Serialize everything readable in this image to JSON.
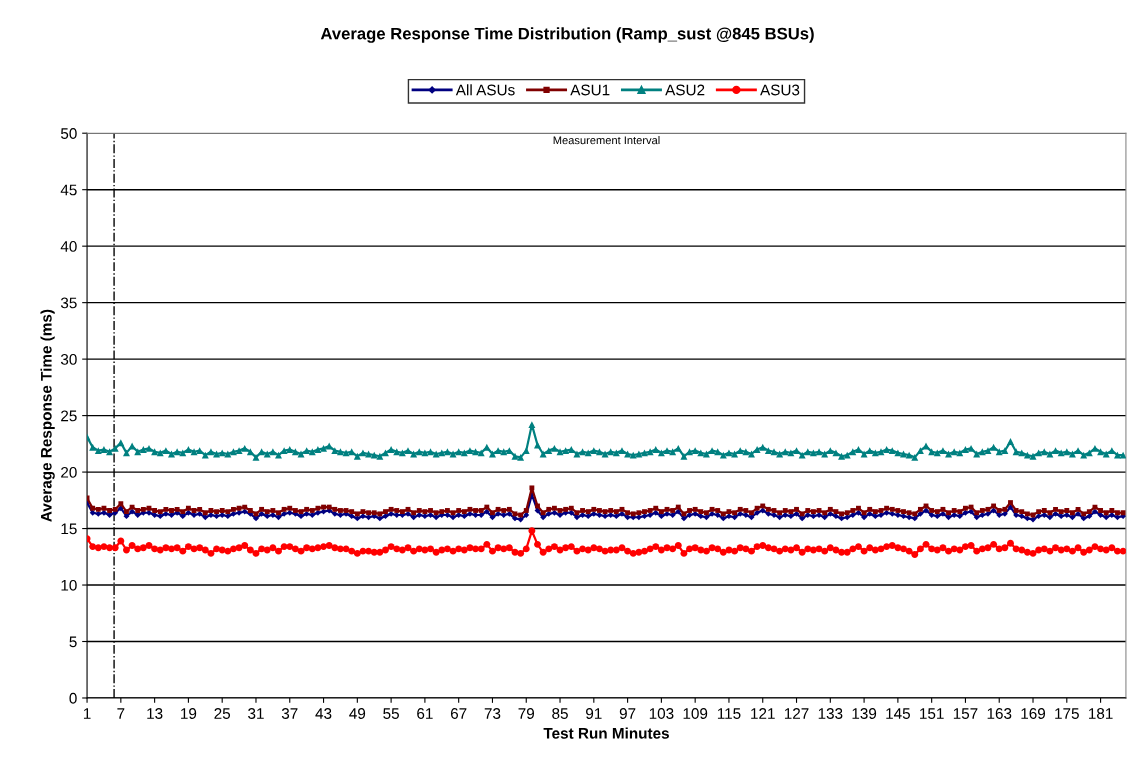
{
  "chart_data": {
    "type": "line",
    "title": "Average Response Time Distribution (Ramp_sust @845 BSUs)",
    "xlabel": "Test Run Minutes",
    "ylabel": "Average Response Time (ms)",
    "annotations": [
      "Measurement Interval"
    ],
    "x": [
      1,
      2,
      3,
      4,
      5,
      6,
      7,
      8,
      9,
      10,
      11,
      12,
      13,
      14,
      15,
      16,
      17,
      18,
      19,
      20,
      21,
      22,
      23,
      24,
      25,
      26,
      27,
      28,
      29,
      30,
      31,
      32,
      33,
      34,
      35,
      36,
      37,
      38,
      39,
      40,
      41,
      42,
      43,
      44,
      45,
      46,
      47,
      48,
      49,
      50,
      51,
      52,
      53,
      54,
      55,
      56,
      57,
      58,
      59,
      60,
      61,
      62,
      63,
      64,
      65,
      66,
      67,
      68,
      69,
      70,
      71,
      72,
      73,
      74,
      75,
      76,
      77,
      78,
      79,
      80,
      81,
      82,
      83,
      84,
      85,
      86,
      87,
      88,
      89,
      90,
      91,
      92,
      93,
      94,
      95,
      96,
      97,
      98,
      99,
      100,
      101,
      102,
      103,
      104,
      105,
      106,
      107,
      108,
      109,
      110,
      111,
      112,
      113,
      114,
      115,
      116,
      117,
      118,
      119,
      120,
      121,
      122,
      123,
      124,
      125,
      126,
      127,
      128,
      129,
      130,
      131,
      132,
      133,
      134,
      135,
      136,
      137,
      138,
      139,
      140,
      141,
      142,
      143,
      144,
      145,
      146,
      147,
      148,
      149,
      150,
      151,
      152,
      153,
      154,
      155,
      156,
      157,
      158,
      159,
      160,
      161,
      162,
      163,
      164,
      165,
      166,
      167,
      168,
      169,
      170,
      171,
      172,
      173,
      174,
      175,
      176,
      177,
      178,
      179,
      180,
      181,
      182,
      183,
      184,
      185
    ],
    "xlim": [
      1,
      185.5
    ],
    "xticks": [
      1,
      7,
      13,
      19,
      25,
      31,
      37,
      43,
      49,
      55,
      61,
      67,
      73,
      79,
      85,
      91,
      97,
      103,
      109,
      115,
      121,
      127,
      133,
      139,
      145,
      151,
      157,
      163,
      169,
      175,
      181
    ],
    "ylim": [
      0,
      50
    ],
    "yticks": [
      0,
      5,
      10,
      15,
      20,
      25,
      30,
      35,
      40,
      45,
      50
    ],
    "grid": "y",
    "legend": "top",
    "line_style": "solid",
    "ref_lines": [
      {
        "axis": "x",
        "value": 5.8,
        "label": null,
        "color": "#000000",
        "line_style": "dashdot"
      }
    ],
    "series": [
      {
        "name": "All ASUs",
        "color": "#000080",
        "marker": "diamond",
        "values": [
          17.3,
          16.4,
          16.3,
          16.4,
          16.2,
          16.4,
          16.8,
          16.1,
          16.5,
          16.2,
          16.4,
          16.4,
          16.2,
          16.1,
          16.3,
          16.2,
          16.4,
          16.1,
          16.4,
          16.2,
          16.3,
          16.0,
          16.2,
          16.1,
          16.2,
          16.1,
          16.3,
          16.4,
          16.5,
          16.3,
          15.9,
          16.3,
          16.1,
          16.2,
          16.0,
          16.3,
          16.4,
          16.3,
          16.1,
          16.3,
          16.2,
          16.4,
          16.5,
          16.6,
          16.3,
          16.2,
          16.3,
          16.1,
          15.9,
          16.1,
          16.0,
          16.1,
          15.9,
          16.1,
          16.3,
          16.2,
          16.2,
          16.3,
          16.0,
          16.2,
          16.1,
          16.2,
          16.0,
          16.2,
          16.2,
          16.0,
          16.2,
          16.1,
          16.3,
          16.2,
          16.2,
          16.5,
          16.0,
          16.3,
          16.2,
          16.3,
          15.9,
          15.8,
          16.2,
          18.0,
          16.6,
          16.0,
          16.3,
          16.4,
          16.2,
          16.4,
          16.4,
          16.0,
          16.2,
          16.1,
          16.3,
          16.2,
          16.1,
          16.2,
          16.1,
          16.3,
          16.0,
          16.0,
          16.0,
          16.1,
          16.2,
          16.4,
          16.1,
          16.3,
          16.2,
          16.5,
          15.9,
          16.2,
          16.3,
          16.1,
          16.0,
          16.3,
          16.2,
          15.9,
          16.1,
          16.0,
          16.3,
          16.2,
          16.0,
          16.4,
          16.6,
          16.3,
          16.2,
          16.0,
          16.2,
          16.1,
          16.3,
          15.9,
          16.2,
          16.1,
          16.2,
          16.0,
          16.3,
          16.1,
          15.9,
          16.0,
          16.2,
          16.4,
          16.0,
          16.3,
          16.1,
          16.2,
          16.4,
          16.3,
          16.2,
          16.1,
          16.0,
          15.9,
          16.3,
          16.6,
          16.2,
          16.1,
          16.3,
          16.0,
          16.2,
          16.1,
          16.4,
          16.5,
          16.0,
          16.2,
          16.3,
          16.6,
          16.2,
          16.3,
          16.9,
          16.2,
          16.1,
          15.9,
          15.8,
          16.1,
          16.2,
          16.0,
          16.3,
          16.1,
          16.2,
          16.0,
          16.3,
          15.9,
          16.1,
          16.5,
          16.2,
          16.0,
          16.2,
          16.0,
          16.1
        ]
      },
      {
        "name": "ASU1",
        "color": "#800000",
        "marker": "square",
        "values": [
          17.7,
          16.8,
          16.7,
          16.8,
          16.6,
          16.7,
          17.2,
          16.5,
          16.9,
          16.6,
          16.7,
          16.8,
          16.6,
          16.5,
          16.7,
          16.6,
          16.7,
          16.5,
          16.8,
          16.6,
          16.7,
          16.4,
          16.6,
          16.5,
          16.6,
          16.5,
          16.7,
          16.8,
          16.9,
          16.6,
          16.3,
          16.7,
          16.5,
          16.6,
          16.4,
          16.7,
          16.8,
          16.6,
          16.5,
          16.7,
          16.6,
          16.8,
          16.9,
          16.9,
          16.7,
          16.6,
          16.6,
          16.5,
          16.3,
          16.5,
          16.4,
          16.4,
          16.3,
          16.5,
          16.7,
          16.6,
          16.5,
          16.7,
          16.4,
          16.6,
          16.5,
          16.6,
          16.4,
          16.5,
          16.6,
          16.4,
          16.6,
          16.5,
          16.7,
          16.6,
          16.6,
          16.9,
          16.4,
          16.7,
          16.6,
          16.7,
          16.3,
          16.2,
          16.6,
          18.6,
          17.0,
          16.4,
          16.7,
          16.8,
          16.6,
          16.7,
          16.8,
          16.4,
          16.6,
          16.5,
          16.7,
          16.6,
          16.5,
          16.6,
          16.5,
          16.7,
          16.4,
          16.3,
          16.4,
          16.5,
          16.6,
          16.8,
          16.5,
          16.7,
          16.6,
          16.9,
          16.3,
          16.6,
          16.7,
          16.5,
          16.4,
          16.7,
          16.6,
          16.3,
          16.5,
          16.4,
          16.7,
          16.6,
          16.4,
          16.8,
          17.0,
          16.7,
          16.6,
          16.4,
          16.6,
          16.5,
          16.7,
          16.3,
          16.6,
          16.5,
          16.6,
          16.4,
          16.7,
          16.5,
          16.3,
          16.4,
          16.6,
          16.8,
          16.4,
          16.7,
          16.5,
          16.6,
          16.8,
          16.7,
          16.6,
          16.5,
          16.4,
          16.3,
          16.7,
          17.0,
          16.6,
          16.5,
          16.7,
          16.4,
          16.6,
          16.5,
          16.8,
          16.9,
          16.4,
          16.6,
          16.7,
          17.0,
          16.6,
          16.7,
          17.3,
          16.6,
          16.5,
          16.3,
          16.2,
          16.5,
          16.6,
          16.4,
          16.7,
          16.5,
          16.6,
          16.4,
          16.7,
          16.3,
          16.5,
          16.9,
          16.6,
          16.4,
          16.6,
          16.4,
          16.4
        ]
      },
      {
        "name": "ASU2",
        "color": "#008080",
        "marker": "triangle",
        "values": [
          23.1,
          22.2,
          21.9,
          22.0,
          21.8,
          22.1,
          22.6,
          21.7,
          22.3,
          21.8,
          22.0,
          22.1,
          21.8,
          21.7,
          21.9,
          21.6,
          21.8,
          21.7,
          22.0,
          21.8,
          21.9,
          21.5,
          21.8,
          21.6,
          21.7,
          21.6,
          21.8,
          21.9,
          22.1,
          21.8,
          21.3,
          21.8,
          21.6,
          21.8,
          21.5,
          21.9,
          22.0,
          21.8,
          21.6,
          21.9,
          21.8,
          22.0,
          22.1,
          22.3,
          21.9,
          21.8,
          21.7,
          21.8,
          21.4,
          21.7,
          21.6,
          21.5,
          21.4,
          21.7,
          22.0,
          21.8,
          21.7,
          21.9,
          21.6,
          21.8,
          21.7,
          21.8,
          21.6,
          21.7,
          21.8,
          21.6,
          21.8,
          21.7,
          21.9,
          21.8,
          21.7,
          22.2,
          21.6,
          21.9,
          21.8,
          21.9,
          21.4,
          21.3,
          21.9,
          24.2,
          22.4,
          21.6,
          21.9,
          22.1,
          21.8,
          21.9,
          22.0,
          21.6,
          21.8,
          21.7,
          21.9,
          21.8,
          21.6,
          21.8,
          21.7,
          21.9,
          21.6,
          21.5,
          21.6,
          21.7,
          21.8,
          22.0,
          21.7,
          21.9,
          21.8,
          22.1,
          21.4,
          21.8,
          21.9,
          21.7,
          21.6,
          21.9,
          21.8,
          21.5,
          21.7,
          21.6,
          21.9,
          21.8,
          21.6,
          22.0,
          22.2,
          21.9,
          21.8,
          21.6,
          21.8,
          21.7,
          21.9,
          21.5,
          21.8,
          21.7,
          21.8,
          21.6,
          21.9,
          21.7,
          21.4,
          21.5,
          21.8,
          22.0,
          21.6,
          21.9,
          21.7,
          21.8,
          22.0,
          21.9,
          21.7,
          21.6,
          21.5,
          21.3,
          21.9,
          22.3,
          21.8,
          21.7,
          21.9,
          21.6,
          21.8,
          21.7,
          22.0,
          22.1,
          21.6,
          21.8,
          21.9,
          22.2,
          21.8,
          21.9,
          22.7,
          21.8,
          21.7,
          21.5,
          21.4,
          21.7,
          21.8,
          21.6,
          21.9,
          21.7,
          21.8,
          21.6,
          21.9,
          21.5,
          21.7,
          22.1,
          21.8,
          21.6,
          21.9,
          21.5,
          21.5
        ]
      },
      {
        "name": "ASU3",
        "color": "#ff0000",
        "marker": "circle",
        "values": [
          14.1,
          13.4,
          13.3,
          13.4,
          13.3,
          13.3,
          13.9,
          13.1,
          13.5,
          13.2,
          13.3,
          13.5,
          13.2,
          13.1,
          13.3,
          13.2,
          13.3,
          13.0,
          13.4,
          13.2,
          13.3,
          13.1,
          12.8,
          13.2,
          13.1,
          13.0,
          13.2,
          13.3,
          13.5,
          13.1,
          12.8,
          13.2,
          13.1,
          13.3,
          13.0,
          13.4,
          13.4,
          13.2,
          13.0,
          13.3,
          13.2,
          13.3,
          13.4,
          13.5,
          13.3,
          13.2,
          13.2,
          13.0,
          12.8,
          13.0,
          13.0,
          12.9,
          12.9,
          13.1,
          13.4,
          13.2,
          13.1,
          13.3,
          13.0,
          13.2,
          13.1,
          13.2,
          12.9,
          13.1,
          13.2,
          13.0,
          13.2,
          13.1,
          13.3,
          13.2,
          13.2,
          13.6,
          13.0,
          13.3,
          13.2,
          13.3,
          12.9,
          12.8,
          13.2,
          14.8,
          13.6,
          12.9,
          13.2,
          13.4,
          13.1,
          13.3,
          13.4,
          13.0,
          13.2,
          13.1,
          13.3,
          13.2,
          13.0,
          13.1,
          13.1,
          13.3,
          13.0,
          12.8,
          12.9,
          13.0,
          13.2,
          13.4,
          13.1,
          13.3,
          13.2,
          13.5,
          12.8,
          13.2,
          13.3,
          13.1,
          13.0,
          13.3,
          13.2,
          12.9,
          13.1,
          13.0,
          13.3,
          13.2,
          13.0,
          13.4,
          13.5,
          13.3,
          13.2,
          13.0,
          13.2,
          13.1,
          13.3,
          12.9,
          13.2,
          13.1,
          13.2,
          13.0,
          13.3,
          13.1,
          12.9,
          12.9,
          13.2,
          13.4,
          13.0,
          13.3,
          13.1,
          13.2,
          13.4,
          13.5,
          13.3,
          13.2,
          13.0,
          12.7,
          13.2,
          13.6,
          13.2,
          13.1,
          13.3,
          13.0,
          13.2,
          13.1,
          13.4,
          13.5,
          13.0,
          13.2,
          13.3,
          13.6,
          13.2,
          13.3,
          13.7,
          13.2,
          13.1,
          12.9,
          12.8,
          13.1,
          13.2,
          13.0,
          13.3,
          13.1,
          13.2,
          13.0,
          13.3,
          12.9,
          13.1,
          13.4,
          13.2,
          13.1,
          13.3,
          13.0,
          13.0
        ]
      }
    ]
  }
}
